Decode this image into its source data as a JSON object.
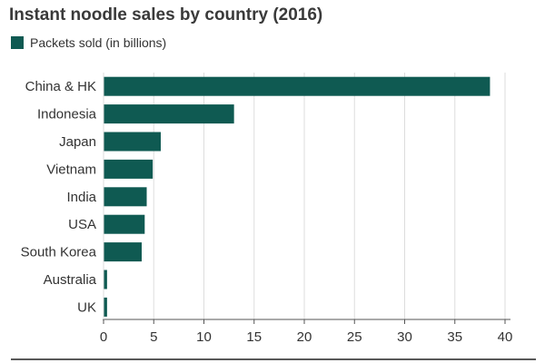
{
  "colors": {
    "bar": "#0f5a52",
    "grid": "#dddddd",
    "axis": "#555555"
  },
  "chart_data": {
    "type": "bar",
    "orientation": "horizontal",
    "title": "Instant noodle sales by country (2016)",
    "legend": {
      "placement": "top-left",
      "entries": [
        "Packets sold (in billions)"
      ]
    },
    "categories": [
      "China & HK",
      "Indonesia",
      "Japan",
      "Vietnam",
      "India",
      "USA",
      "South Korea",
      "Australia",
      "UK"
    ],
    "series": [
      {
        "name": "Packets sold (in billions)",
        "values": [
          38.5,
          13.0,
          5.7,
          4.9,
          4.3,
          4.1,
          3.8,
          0.35,
          0.35
        ]
      }
    ],
    "xlim": [
      0,
      40
    ],
    "xticks": [
      0,
      5,
      10,
      15,
      20,
      25,
      30,
      35,
      40
    ],
    "grid": "vertical"
  }
}
